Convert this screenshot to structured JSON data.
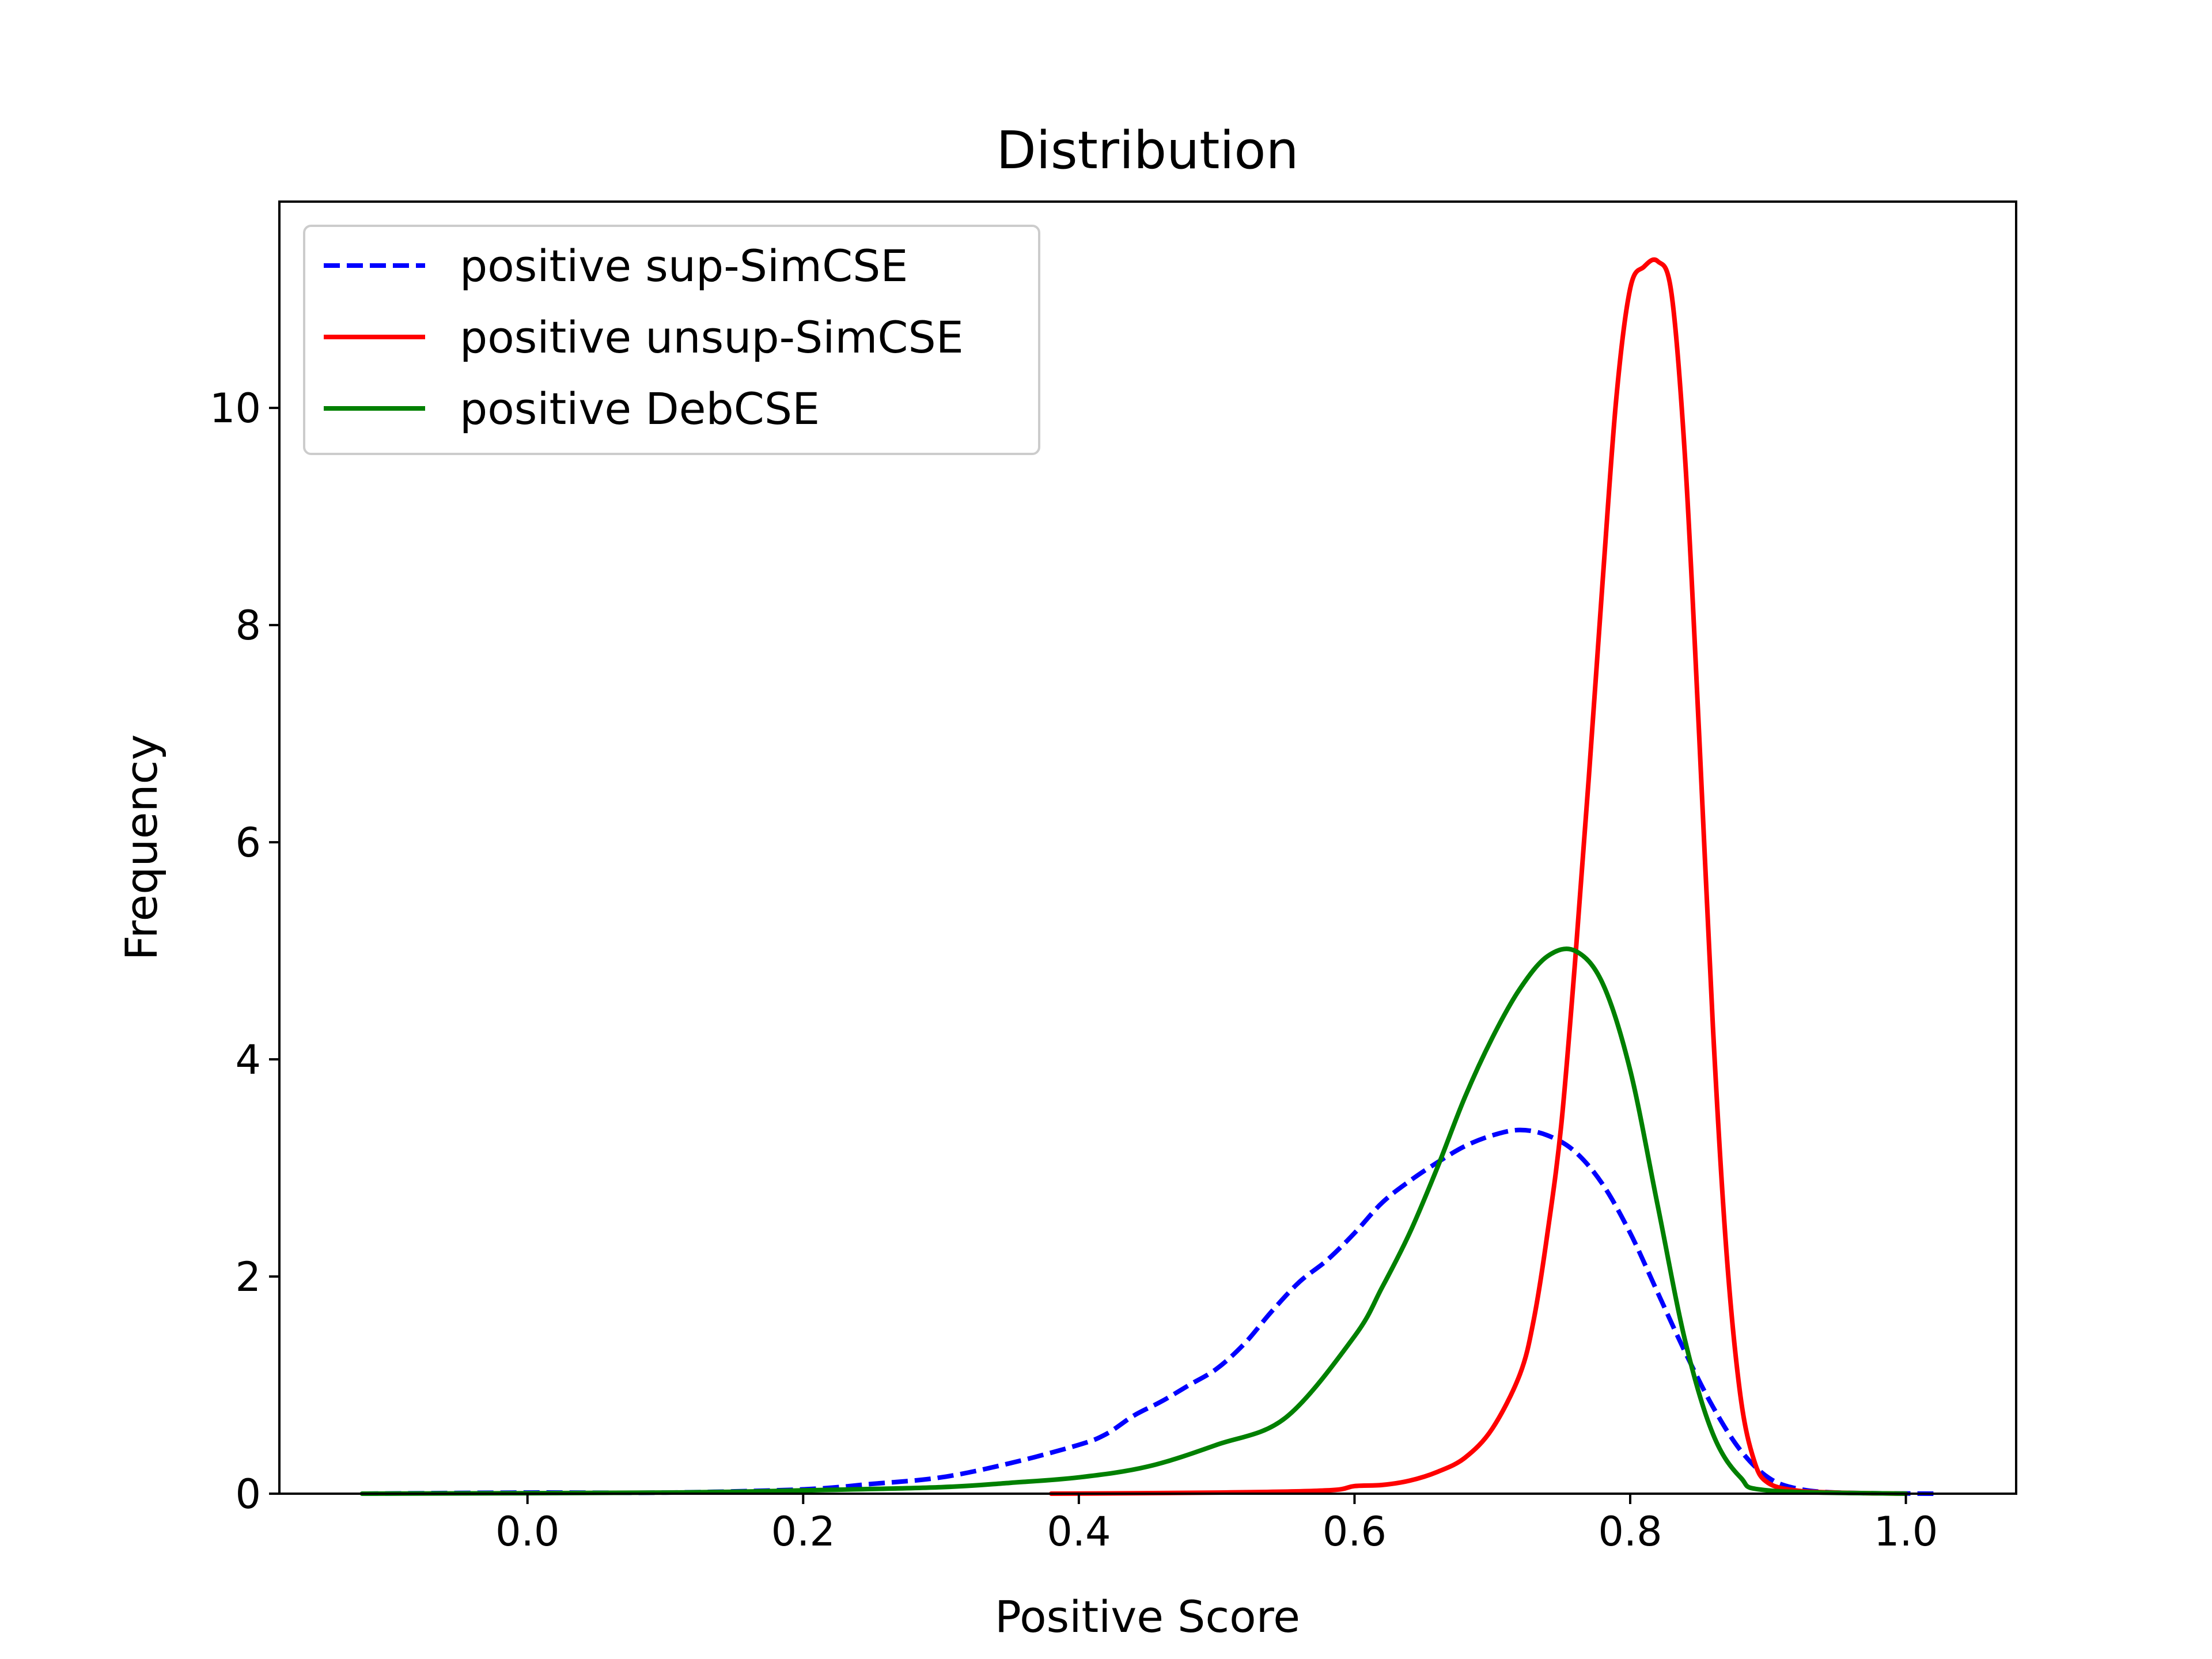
{
  "chart_data": {
    "type": "line",
    "title": "Distribution",
    "xlabel": "Positive Score",
    "ylabel": "Frequency",
    "xlim": [
      -0.18,
      1.08
    ],
    "ylim": [
      0,
      11.9
    ],
    "x_ticks": [
      0.0,
      0.2,
      0.4,
      0.6,
      0.8,
      1.0
    ],
    "x_tick_labels": [
      "0.0",
      "0.2",
      "0.4",
      "0.6",
      "0.8",
      "1.0"
    ],
    "y_ticks": [
      0,
      2,
      4,
      6,
      8,
      10
    ],
    "y_tick_labels": [
      "0",
      "2",
      "4",
      "6",
      "8",
      "10"
    ],
    "grid": false,
    "legend_position": "top-left",
    "series": [
      {
        "name": "positive sup-SimCSE",
        "color": "#0000ff",
        "style": "dashed",
        "x": [
          -0.12,
          0.0,
          0.1,
          0.2,
          0.25,
          0.3,
          0.35,
          0.4,
          0.42,
          0.44,
          0.46,
          0.48,
          0.5,
          0.52,
          0.54,
          0.56,
          0.58,
          0.6,
          0.62,
          0.64,
          0.66,
          0.68,
          0.7,
          0.72,
          0.74,
          0.76,
          0.78,
          0.8,
          0.82,
          0.84,
          0.86,
          0.88,
          0.9,
          0.92,
          0.95,
          1.02
        ],
        "y": [
          0.0,
          0.01,
          0.01,
          0.04,
          0.09,
          0.15,
          0.28,
          0.45,
          0.55,
          0.72,
          0.85,
          1.0,
          1.15,
          1.38,
          1.68,
          1.95,
          2.15,
          2.4,
          2.68,
          2.88,
          3.05,
          3.2,
          3.3,
          3.35,
          3.3,
          3.15,
          2.85,
          2.4,
          1.85,
          1.3,
          0.8,
          0.4,
          0.15,
          0.05,
          0.01,
          0.0
        ]
      },
      {
        "name": "positive unsup-SimCSE",
        "color": "#ff0000",
        "style": "solid",
        "x": [
          0.38,
          0.5,
          0.58,
          0.6,
          0.62,
          0.64,
          0.66,
          0.68,
          0.7,
          0.72,
          0.73,
          0.74,
          0.75,
          0.76,
          0.77,
          0.78,
          0.79,
          0.8,
          0.81,
          0.82,
          0.83,
          0.84,
          0.85,
          0.86,
          0.87,
          0.88,
          0.89,
          0.9,
          0.92,
          0.95,
          1.0
        ],
        "y": [
          0.0,
          0.01,
          0.03,
          0.07,
          0.08,
          0.12,
          0.2,
          0.33,
          0.6,
          1.1,
          1.6,
          2.4,
          3.4,
          4.9,
          6.6,
          8.4,
          10.1,
          11.1,
          11.3,
          11.35,
          11.05,
          9.5,
          7.0,
          4.3,
          2.2,
          0.9,
          0.3,
          0.1,
          0.03,
          0.01,
          0.0
        ]
      },
      {
        "name": "positive DebCSE",
        "color": "#008000",
        "style": "solid",
        "x": [
          -0.12,
          0.1,
          0.2,
          0.3,
          0.35,
          0.4,
          0.45,
          0.5,
          0.55,
          0.6,
          0.62,
          0.64,
          0.66,
          0.68,
          0.7,
          0.72,
          0.74,
          0.76,
          0.78,
          0.8,
          0.82,
          0.84,
          0.86,
          0.88,
          0.9,
          1.0
        ],
        "y": [
          0.0,
          0.01,
          0.03,
          0.06,
          0.1,
          0.15,
          0.25,
          0.45,
          0.7,
          1.45,
          1.9,
          2.4,
          3.0,
          3.65,
          4.2,
          4.65,
          4.95,
          5.0,
          4.7,
          3.9,
          2.65,
          1.4,
          0.55,
          0.15,
          0.03,
          0.0
        ]
      }
    ]
  }
}
